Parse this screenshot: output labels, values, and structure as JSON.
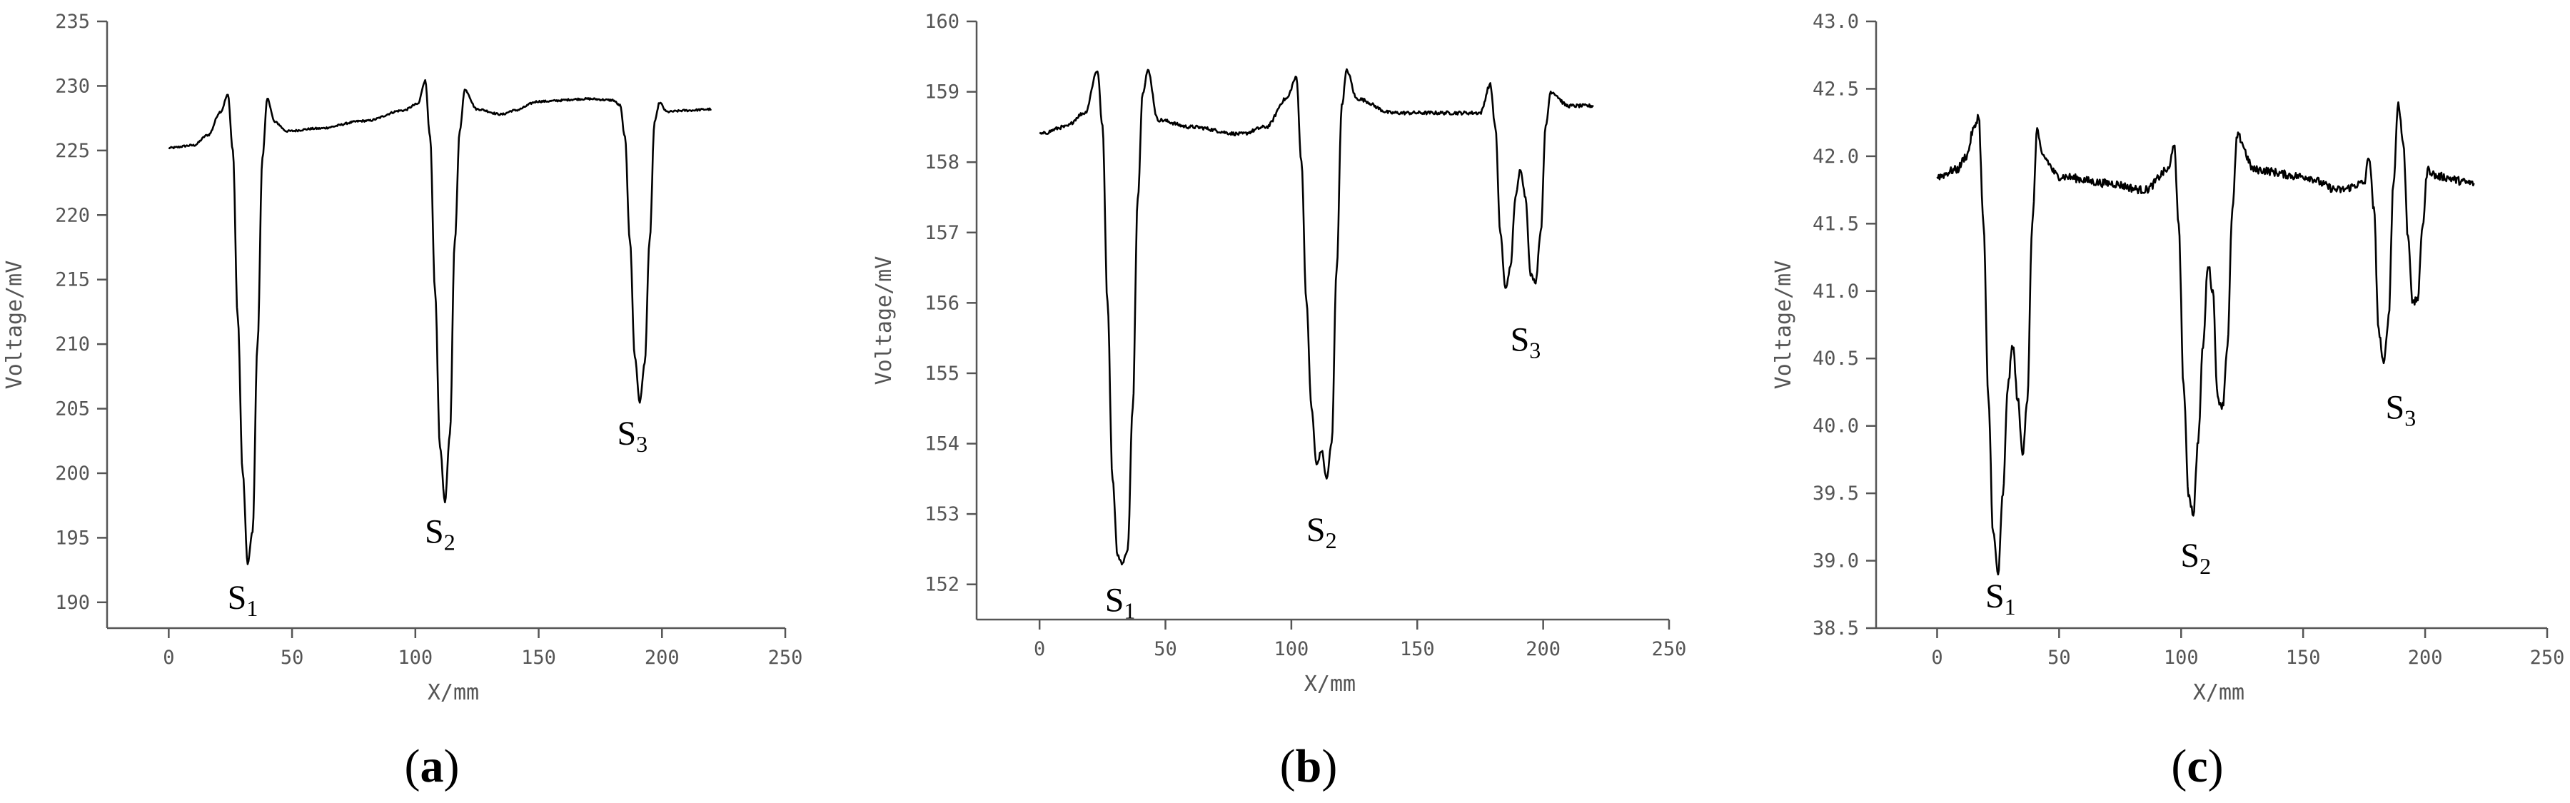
{
  "chart_data": [
    {
      "type": "line",
      "panel": "(a)",
      "panel_letter": "a",
      "xlabel": "X/mm",
      "ylabel": "Voltage/mV",
      "xlim": [
        -25,
        250
      ],
      "ylim": [
        188,
        235
      ],
      "xticks": [
        0,
        50,
        100,
        150,
        200,
        250
      ],
      "yticks": [
        190,
        195,
        200,
        205,
        210,
        215,
        220,
        225,
        230,
        235
      ],
      "ytick_labels": [
        "190",
        "195",
        "200",
        "205",
        "210",
        "215",
        "220",
        "225",
        "230",
        "235"
      ],
      "grid": false,
      "line_color": "#000000",
      "noise": 0.15,
      "series": [
        {
          "x": [
            0,
            10,
            16,
            21,
            24,
            26,
            28,
            30,
            32,
            34,
            36,
            38,
            40,
            43,
            48,
            60,
            80,
            95,
            101,
            104,
            106,
            108,
            110,
            112,
            114,
            116,
            118,
            120,
            125,
            135,
            140,
            150,
            170,
            180,
            183,
            185,
            187,
            189,
            191,
            193,
            195,
            197,
            199,
            202,
            210,
            220
          ],
          "y": [
            225.2,
            225.4,
            226.2,
            228.0,
            229.3,
            225.0,
            212.0,
            200.0,
            193.0,
            195.5,
            210.0,
            224.5,
            229.0,
            227.2,
            226.5,
            226.7,
            227.3,
            228.1,
            228.6,
            230.4,
            226.0,
            214.0,
            202.0,
            197.8,
            203.0,
            218.0,
            226.5,
            229.7,
            228.2,
            227.8,
            228.1,
            228.8,
            229.0,
            228.9,
            228.5,
            226.0,
            218.0,
            209.0,
            205.5,
            208.5,
            218.0,
            227.2,
            228.7,
            228.0,
            228.1,
            228.2
          ]
        }
      ],
      "annotations": [
        {
          "main": "S",
          "sub": "1",
          "x": 30,
          "y": 190.5
        },
        {
          "main": "S",
          "sub": "2",
          "x": 110,
          "y": 195.6
        },
        {
          "main": "S",
          "sub": "3",
          "x": 188,
          "y": 203.2
        }
      ]
    },
    {
      "type": "line",
      "panel": "(b)",
      "panel_letter": "b",
      "xlabel": "X/mm",
      "ylabel": "Voltage/mV",
      "xlim": [
        -25,
        250
      ],
      "ylim": [
        151.5,
        160
      ],
      "xticks": [
        0,
        50,
        100,
        150,
        200,
        250
      ],
      "yticks": [
        152,
        153,
        154,
        155,
        156,
        157,
        158,
        159,
        160
      ],
      "ytick_labels": [
        "152",
        "153",
        "154",
        "155",
        "156",
        "157",
        "158",
        "159",
        "160"
      ],
      "grid": false,
      "line_color": "#000000",
      "noise": 0.05,
      "series": [
        {
          "x": [
            0,
            10,
            18,
            23,
            25,
            27,
            29,
            31,
            33,
            35,
            37,
            39,
            41,
            43,
            47,
            60,
            80,
            90,
            98,
            102,
            104,
            106,
            108,
            110,
            112,
            114,
            116,
            118,
            120,
            122,
            126,
            140,
            160,
            175,
            179,
            181,
            183,
            185,
            187,
            189,
            191,
            193,
            195,
            197,
            199,
            201,
            203,
            210,
            220
          ],
          "y": [
            158.4,
            158.5,
            158.7,
            159.3,
            158.5,
            156.0,
            153.5,
            152.4,
            152.3,
            152.5,
            154.5,
            157.5,
            159.0,
            159.3,
            158.6,
            158.5,
            158.4,
            158.5,
            158.9,
            159.2,
            158.0,
            156.0,
            154.5,
            153.7,
            153.9,
            153.5,
            154.0,
            156.5,
            158.8,
            159.3,
            158.9,
            158.7,
            158.7,
            158.7,
            159.1,
            158.5,
            157.0,
            156.2,
            156.5,
            157.5,
            157.9,
            157.5,
            156.4,
            156.3,
            157.0,
            158.5,
            159.0,
            158.8,
            158.8
          ]
        }
      ],
      "annotations": [
        {
          "main": "S",
          "sub": "1",
          "x": 32,
          "y": 151.8
        },
        {
          "main": "S",
          "sub": "2",
          "x": 112,
          "y": 152.8
        },
        {
          "main": "S",
          "sub": "3",
          "x": 193,
          "y": 155.5
        }
      ]
    },
    {
      "type": "line",
      "panel": "(c)",
      "panel_letter": "c",
      "xlabel": "X/mm",
      "ylabel": "Voltage/mV",
      "xlim": [
        -25,
        250
      ],
      "ylim": [
        38.5,
        43
      ],
      "xticks": [
        0,
        50,
        100,
        150,
        200,
        250
      ],
      "yticks": [
        38.5,
        39,
        39.5,
        40,
        40.5,
        41,
        41.5,
        42,
        42.5,
        43
      ],
      "ytick_labels": [
        "38.5",
        "39.0",
        "39.5",
        "40.0",
        "40.5",
        "41.0",
        "41.5",
        "42.0",
        "42.5",
        "43.0"
      ],
      "grid": false,
      "line_color": "#000000",
      "noise": 0.06,
      "series": [
        {
          "x": [
            0,
            8,
            12,
            15,
            17,
            19,
            21,
            23,
            25,
            27,
            29,
            31,
            33,
            35,
            37,
            39,
            41,
            43,
            50,
            70,
            85,
            95,
            97,
            99,
            101,
            103,
            105,
            107,
            109,
            111,
            113,
            115,
            117,
            119,
            121,
            123,
            130,
            150,
            165,
            175,
            177,
            179,
            181,
            183,
            185,
            187,
            189,
            191,
            193,
            195,
            197,
            199,
            201,
            205,
            220
          ],
          "y": [
            41.85,
            41.9,
            42.0,
            42.2,
            42.3,
            41.5,
            40.2,
            39.2,
            38.9,
            39.5,
            40.3,
            40.6,
            40.2,
            39.8,
            40.2,
            41.5,
            42.2,
            42.0,
            41.85,
            41.8,
            41.75,
            41.9,
            42.1,
            41.5,
            40.3,
            39.5,
            39.35,
            39.9,
            40.6,
            41.2,
            41.0,
            40.2,
            40.15,
            40.6,
            41.6,
            42.15,
            41.9,
            41.85,
            41.75,
            41.8,
            42.0,
            41.6,
            40.7,
            40.45,
            40.8,
            41.8,
            42.4,
            42.1,
            41.4,
            40.9,
            40.95,
            41.5,
            41.9,
            41.85,
            41.8
          ]
        }
      ],
      "annotations": [
        {
          "main": "S",
          "sub": "1",
          "x": 26,
          "y": 38.75
        },
        {
          "main": "S",
          "sub": "2",
          "x": 106,
          "y": 39.05
        },
        {
          "main": "S",
          "sub": "3",
          "x": 190,
          "y": 40.15
        }
      ]
    }
  ]
}
